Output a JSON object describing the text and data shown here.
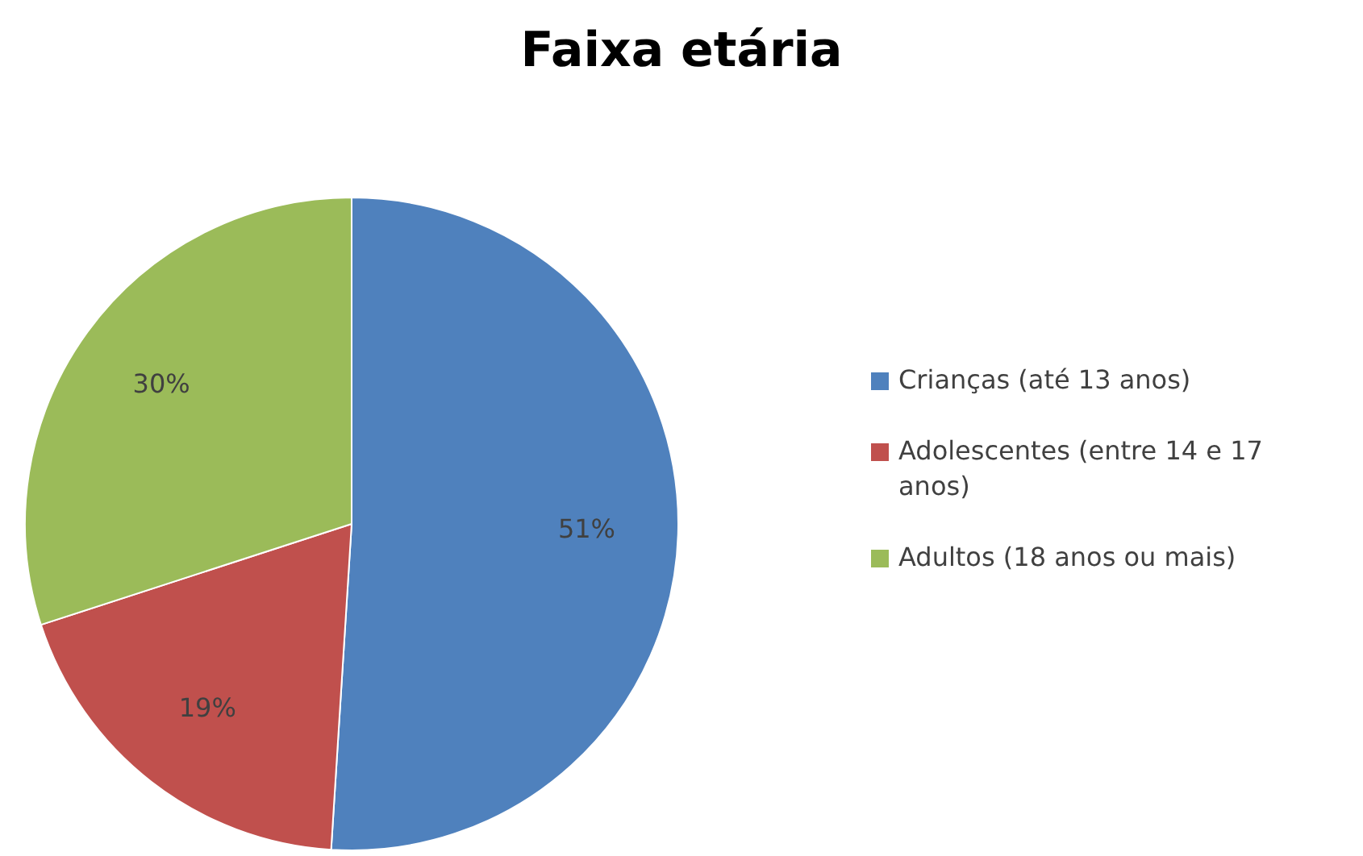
{
  "chart_data": {
    "type": "pie",
    "title": "Faixa etária",
    "categories": [
      "Crianças (até 13 anos)",
      "Adolescentes (entre 14 e 17 anos)",
      "Adultos (18 anos ou mais)"
    ],
    "values": [
      51,
      19,
      30
    ],
    "colors": [
      "#4f81bd",
      "#c0504d",
      "#9bbb59"
    ],
    "value_labels": [
      "51%",
      "19%",
      "30%"
    ],
    "legend": "right"
  }
}
